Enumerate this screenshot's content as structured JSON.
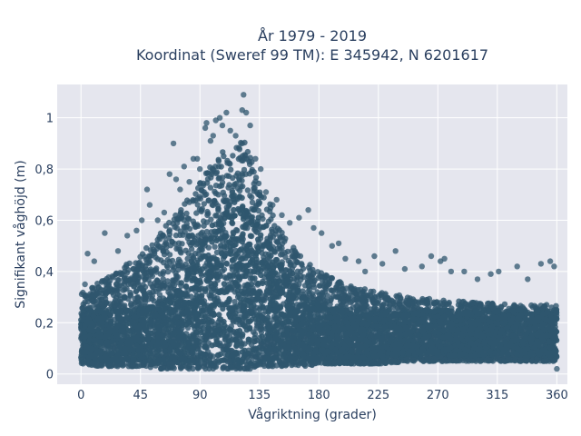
{
  "chart_data": {
    "type": "scatter",
    "title_line1": "År 1979 - 2019",
    "title_line2": "Koordinat (Sweref 99 TM): E 345942, N 6201617",
    "xlabel": "Vågriktning (grader)",
    "ylabel": "Signifikant våghöjd (m)",
    "xlim": [
      -18,
      368
    ],
    "ylim": [
      -0.04,
      1.13
    ],
    "xticks": [
      {
        "value": 0,
        "label": "0"
      },
      {
        "value": 45,
        "label": "45"
      },
      {
        "value": 90,
        "label": "90"
      },
      {
        "value": 135,
        "label": "135"
      },
      {
        "value": 180,
        "label": "180"
      },
      {
        "value": 225,
        "label": "225"
      },
      {
        "value": 270,
        "label": "270"
      },
      {
        "value": 315,
        "label": "315"
      },
      {
        "value": 360,
        "label": "360"
      }
    ],
    "yticks": [
      {
        "value": 0,
        "label": "0"
      },
      {
        "value": 0.2,
        "label": "0,2"
      },
      {
        "value": 0.4,
        "label": "0,4"
      },
      {
        "value": 0.6,
        "label": "0,6"
      },
      {
        "value": 0.8,
        "label": "0,8"
      },
      {
        "value": 1.0,
        "label": "1"
      }
    ],
    "grid": true,
    "marker_color": "#2f566e",
    "plot_bg": "#e5e6ee",
    "grid_color": "#ffffff",
    "envelope": {
      "x": [
        0,
        15,
        30,
        45,
        60,
        75,
        90,
        100,
        110,
        120,
        125,
        130,
        140,
        150,
        160,
        170,
        180,
        200,
        225,
        250,
        270,
        300,
        330,
        360
      ],
      "upper": [
        0.32,
        0.36,
        0.42,
        0.47,
        0.55,
        0.65,
        0.75,
        0.83,
        0.88,
        0.92,
        0.9,
        0.84,
        0.7,
        0.58,
        0.5,
        0.44,
        0.4,
        0.35,
        0.32,
        0.3,
        0.29,
        0.28,
        0.27,
        0.27
      ],
      "lower": [
        0.04,
        0.03,
        0.03,
        0.03,
        0.02,
        0.02,
        0.02,
        0.02,
        0.02,
        0.02,
        0.02,
        0.02,
        0.03,
        0.03,
        0.03,
        0.03,
        0.04,
        0.04,
        0.04,
        0.05,
        0.05,
        0.05,
        0.05,
        0.05
      ]
    },
    "outliers": [
      {
        "x": 3,
        "y": 0.35
      },
      {
        "x": 5,
        "y": 0.47
      },
      {
        "x": 10,
        "y": 0.44
      },
      {
        "x": 18,
        "y": 0.55
      },
      {
        "x": 28,
        "y": 0.48
      },
      {
        "x": 35,
        "y": 0.54
      },
      {
        "x": 42,
        "y": 0.56
      },
      {
        "x": 46,
        "y": 0.6
      },
      {
        "x": 50,
        "y": 0.72
      },
      {
        "x": 52,
        "y": 0.66
      },
      {
        "x": 58,
        "y": 0.6
      },
      {
        "x": 63,
        "y": 0.63
      },
      {
        "x": 67,
        "y": 0.78
      },
      {
        "x": 70,
        "y": 0.9
      },
      {
        "x": 72,
        "y": 0.76
      },
      {
        "x": 75,
        "y": 0.72
      },
      {
        "x": 78,
        "y": 0.81
      },
      {
        "x": 82,
        "y": 0.75
      },
      {
        "x": 85,
        "y": 0.84
      },
      {
        "x": 88,
        "y": 0.84
      },
      {
        "x": 90,
        "y": 0.8
      },
      {
        "x": 94,
        "y": 0.96
      },
      {
        "x": 95,
        "y": 0.98
      },
      {
        "x": 98,
        "y": 0.91
      },
      {
        "x": 100,
        "y": 0.93
      },
      {
        "x": 102,
        "y": 0.99
      },
      {
        "x": 105,
        "y": 1.0
      },
      {
        "x": 107,
        "y": 0.97
      },
      {
        "x": 110,
        "y": 1.02
      },
      {
        "x": 113,
        "y": 0.95
      },
      {
        "x": 117,
        "y": 0.93
      },
      {
        "x": 122,
        "y": 1.03
      },
      {
        "x": 123,
        "y": 1.09
      },
      {
        "x": 125,
        "y": 1.02
      },
      {
        "x": 128,
        "y": 0.97
      },
      {
        "x": 132,
        "y": 0.84
      },
      {
        "x": 136,
        "y": 0.8
      },
      {
        "x": 140,
        "y": 0.71
      },
      {
        "x": 145,
        "y": 0.66
      },
      {
        "x": 148,
        "y": 0.68
      },
      {
        "x": 152,
        "y": 0.62
      },
      {
        "x": 158,
        "y": 0.59
      },
      {
        "x": 165,
        "y": 0.61
      },
      {
        "x": 172,
        "y": 0.64
      },
      {
        "x": 176,
        "y": 0.57
      },
      {
        "x": 182,
        "y": 0.55
      },
      {
        "x": 190,
        "y": 0.5
      },
      {
        "x": 195,
        "y": 0.51
      },
      {
        "x": 200,
        "y": 0.45
      },
      {
        "x": 210,
        "y": 0.44
      },
      {
        "x": 215,
        "y": 0.4
      },
      {
        "x": 222,
        "y": 0.46
      },
      {
        "x": 228,
        "y": 0.43
      },
      {
        "x": 238,
        "y": 0.48
      },
      {
        "x": 245,
        "y": 0.41
      },
      {
        "x": 258,
        "y": 0.42
      },
      {
        "x": 265,
        "y": 0.46
      },
      {
        "x": 272,
        "y": 0.44
      },
      {
        "x": 275,
        "y": 0.45
      },
      {
        "x": 280,
        "y": 0.4
      },
      {
        "x": 290,
        "y": 0.4
      },
      {
        "x": 300,
        "y": 0.37
      },
      {
        "x": 310,
        "y": 0.39
      },
      {
        "x": 316,
        "y": 0.4
      },
      {
        "x": 330,
        "y": 0.42
      },
      {
        "x": 338,
        "y": 0.37
      },
      {
        "x": 348,
        "y": 0.43
      },
      {
        "x": 355,
        "y": 0.44
      },
      {
        "x": 358,
        "y": 0.42
      },
      {
        "x": 360,
        "y": 0.02
      }
    ]
  }
}
